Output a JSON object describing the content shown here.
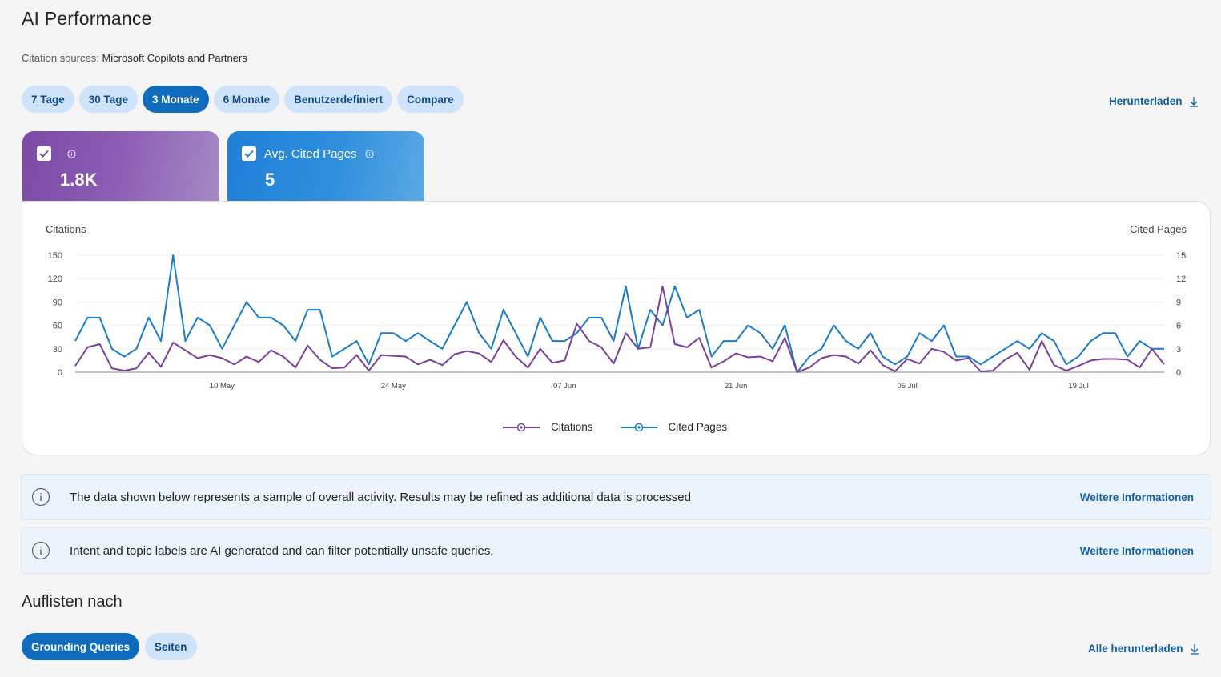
{
  "page": {
    "title": "AI Performance",
    "citation_label": "Citation sources:",
    "citation_value": "Microsoft Copilots and Partners"
  },
  "range_pills": [
    {
      "label": "7 Tage",
      "active": false
    },
    {
      "label": "30 Tage",
      "active": false
    },
    {
      "label": "3 Monate",
      "active": true
    },
    {
      "label": "6 Monate",
      "active": false
    },
    {
      "label": "Benutzerdefiniert",
      "active": false
    },
    {
      "label": "Compare",
      "active": false
    }
  ],
  "download_label": "Herunterladen",
  "metrics": [
    {
      "label": "",
      "value": "1.8K",
      "checked": true,
      "color": "#7a4aa6"
    },
    {
      "label": "Avg. Cited Pages",
      "value": "5",
      "checked": true,
      "color": "#1f7fd6"
    }
  ],
  "colors": {
    "citations": "#7b3f9e",
    "cited_pages": "#1a7ccc",
    "accent": "#0f6cbd",
    "link": "#115ea3"
  },
  "chart_data": {
    "type": "line",
    "left_axis_label": "Citations",
    "right_axis_label": "Cited Pages",
    "left_ticks": [
      "150",
      "120",
      "90",
      "60",
      "30",
      "0"
    ],
    "right_ticks": [
      "15",
      "12",
      "9",
      "6",
      "3",
      "0"
    ],
    "ylim_left": [
      0,
      150
    ],
    "ylim_right": [
      0,
      15
    ],
    "x_tick_labels": [
      "10 May",
      "24 May",
      "07 Jun",
      "21 Jun",
      "05 Jul",
      "19 Jul"
    ],
    "x_tick_index": [
      12,
      26,
      40,
      54,
      68,
      82
    ],
    "grid": true,
    "legend_position": "bottom-center",
    "series": [
      {
        "name": "Citations",
        "axis": "left",
        "values": [
          8,
          32,
          36,
          5,
          2,
          5,
          25,
          7,
          38,
          28,
          18,
          22,
          18,
          10,
          20,
          13,
          28,
          20,
          6,
          34,
          16,
          5,
          6,
          22,
          2,
          22,
          21,
          20,
          10,
          16,
          9,
          23,
          27,
          24,
          13,
          41,
          20,
          6,
          30,
          12,
          15,
          62,
          40,
          32,
          11,
          50,
          30,
          32,
          110,
          36,
          32,
          44,
          6,
          14,
          24,
          19,
          20,
          14,
          44,
          0,
          6,
          18,
          22,
          20,
          11,
          28,
          9,
          1,
          17,
          11,
          30,
          26,
          15,
          18,
          1,
          2,
          16,
          25,
          3,
          40,
          9,
          2,
          8,
          15,
          17,
          17,
          16,
          6,
          30,
          10
        ]
      },
      {
        "name": "Cited Pages",
        "axis": "right",
        "values": [
          4,
          7,
          7,
          3,
          2,
          3,
          7,
          4,
          15,
          4,
          7,
          6,
          3,
          6,
          9,
          7,
          7,
          6,
          4,
          8,
          8,
          2,
          3,
          4,
          1,
          5,
          5,
          4,
          5,
          4,
          3,
          6,
          9,
          5,
          3,
          8,
          5,
          2,
          7,
          4,
          4,
          5,
          7,
          7,
          4,
          11,
          3,
          8,
          6,
          11,
          7,
          8,
          2,
          4,
          4,
          6,
          5,
          3,
          6,
          0,
          2,
          3,
          6,
          4,
          3,
          5,
          2,
          1,
          2,
          5,
          4,
          6,
          2,
          2,
          1,
          2,
          3,
          4,
          3,
          5,
          4,
          1,
          2,
          4,
          5,
          5,
          2,
          4,
          3,
          3
        ]
      }
    ]
  },
  "banners": [
    {
      "text": "The data shown below represents a sample of overall activity. Results may be refined as additional data is processed",
      "link": "Weitere Informationen"
    },
    {
      "text": "Intent and topic labels are AI generated and can filter potentially unsafe queries.",
      "link": "Weitere Informationen"
    }
  ],
  "list_section": {
    "title": "Auflisten nach",
    "tabs": [
      {
        "label": "Grounding Queries",
        "active": true
      },
      {
        "label": "Seiten",
        "active": false
      }
    ],
    "download_all_label": "Alle herunterladen"
  }
}
